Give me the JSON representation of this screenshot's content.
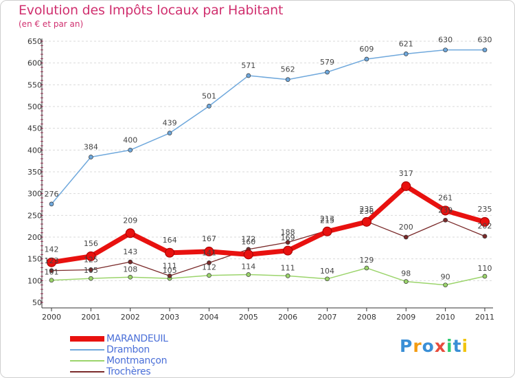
{
  "header": {
    "title": "Evolution des Impôts locaux par Habitant",
    "subtitle": "(en € et par an)"
  },
  "logo": {
    "text": "Proxiti",
    "letter_colors": [
      "#3a8fd6",
      "#f39c12",
      "#3a8fd6",
      "#e74c3c",
      "#2ecc71",
      "#3a8fd6",
      "#f1c40f"
    ]
  },
  "colors": {
    "title": "#d0306f",
    "legend_text": "#4a6fd8",
    "grid": "#d9d9d9",
    "axis": "#333333"
  },
  "chart_data": {
    "type": "line",
    "title": "Evolution des Impôts locaux par Habitant",
    "subtitle": "(en € et par an)",
    "x": [
      "2000",
      "2001",
      "2002",
      "2003",
      "2004",
      "2005",
      "2006",
      "2007",
      "2008",
      "2009",
      "2010",
      "2011"
    ],
    "ylim": [
      50,
      650
    ],
    "yticks": [
      50,
      100,
      150,
      200,
      250,
      300,
      350,
      400,
      450,
      500,
      550,
      600,
      650
    ],
    "grid": "horizontal dashed",
    "legend_position": "bottom-left",
    "series": [
      {
        "name": "MARANDEUIL",
        "color": "#e8110f",
        "values": [
          142,
          156,
          209,
          164,
          167,
          160,
          169,
          213,
          235,
          317,
          261,
          235
        ],
        "labels": [
          "142",
          "156",
          "209",
          "164",
          "167",
          "160",
          "169",
          "213",
          "235",
          "317",
          "261",
          "235"
        ]
      },
      {
        "name": "Drambon",
        "color": "#6fa8dc",
        "values": [
          276,
          384,
          400,
          439,
          501,
          571,
          562,
          579,
          609,
          621,
          630,
          630
        ],
        "labels": [
          "276",
          "384",
          "400",
          "439",
          "501",
          "571",
          "562",
          "579",
          "609",
          "621",
          "630",
          "630"
        ]
      },
      {
        "name": "Montmançon",
        "color": "#9bd46b",
        "values": [
          101,
          105,
          108,
          105,
          112,
          114,
          111,
          104,
          129,
          98,
          90,
          110
        ],
        "labels": [
          "101",
          "105",
          "108",
          "105",
          "112",
          "114",
          "111",
          "104",
          "129",
          "98",
          "90",
          "110"
        ]
      },
      {
        "name": "Trochères",
        "color": "#7a2a2a",
        "values": [
          123,
          125,
          143,
          111,
          141,
          172,
          188,
          215,
          236,
          200,
          239,
          202
        ],
        "labels": [
          "123",
          "125",
          "143",
          "111",
          "141",
          "172",
          "188",
          "215",
          "236",
          "200",
          "239",
          "202"
        ]
      }
    ]
  }
}
